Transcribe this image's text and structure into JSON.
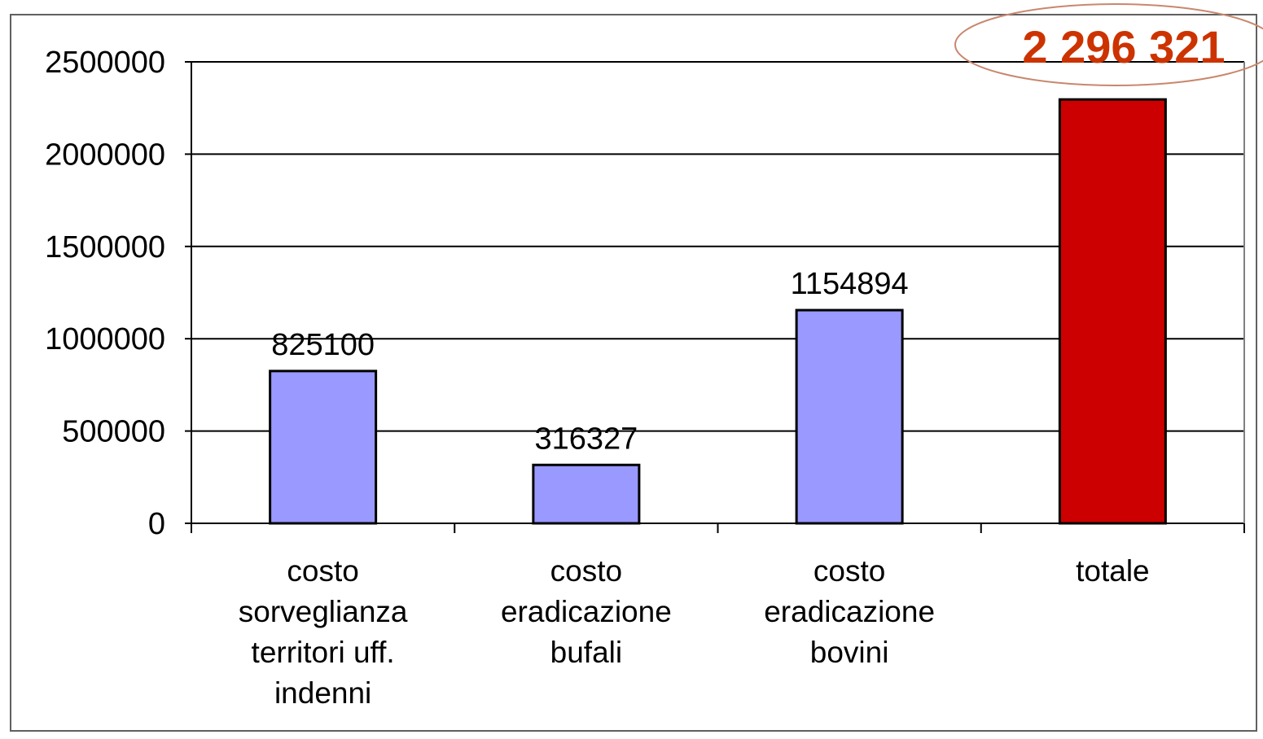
{
  "chart_data": {
    "type": "bar",
    "categories": [
      [
        "costo",
        "sorveglianza",
        "territori uff.",
        "indenni"
      ],
      [
        "costo",
        "eradicazione",
        "bufali"
      ],
      [
        "costo",
        "eradicazione",
        "bovini"
      ],
      [
        "totale"
      ]
    ],
    "values": [
      825100,
      316327,
      1154894,
      2296321
    ],
    "data_labels": [
      "825100",
      "316327",
      "1154894",
      ""
    ],
    "highlight_label": "2 296 321",
    "y_ticks": [
      "0",
      "500000",
      "1000000",
      "1500000",
      "2000000",
      "2500000"
    ],
    "ylim": [
      0,
      2500000
    ],
    "grid": true,
    "legend": false,
    "colors": {
      "bar": "#9999ff",
      "total_bar": "#cc0000",
      "highlight_text": "#cc3300",
      "highlight_ellipse": "#c8876e",
      "grid": "#000000"
    }
  }
}
